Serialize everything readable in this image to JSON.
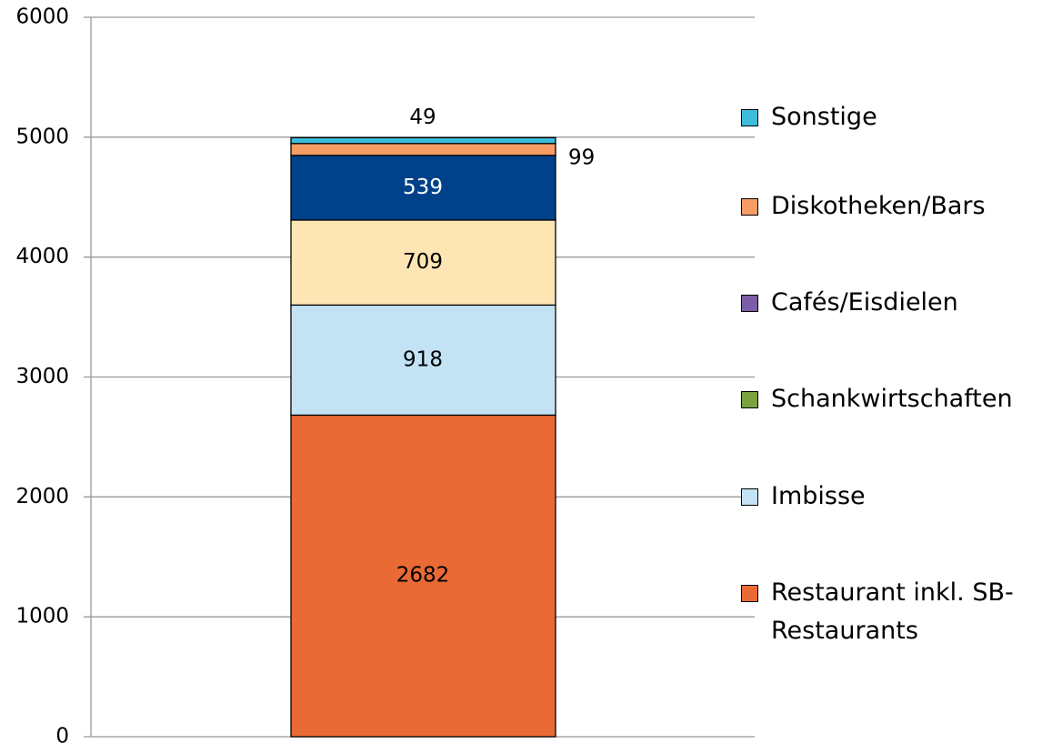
{
  "chart_data": {
    "type": "stacked_bar",
    "categories": [
      null
    ],
    "series": [
      {
        "name": "Restaurant inkl. SB-Restaurants",
        "color": "#e96a35",
        "values": [
          2682
        ]
      },
      {
        "name": "Imbisse",
        "color": "#c3e3f5",
        "values": [
          918
        ]
      },
      {
        "name": "Schankwirtschaften",
        "color": "#fde6b4",
        "legend_color": "#7aa33f",
        "values": [
          709
        ]
      },
      {
        "name": "Cafés/Eisdielen",
        "color": "#004289",
        "legend_color": "#7b5ea7",
        "values": [
          539
        ]
      },
      {
        "name": "Diskotheken/Bars",
        "color": "#f79c65",
        "values": [
          99
        ]
      },
      {
        "name": "Sonstige",
        "color": "#3cbddc",
        "values": [
          49
        ]
      }
    ],
    "ylim": [
      0,
      6000
    ],
    "yticks": [
      0,
      1000,
      2000,
      3000,
      4000,
      5000,
      6000
    ],
    "grid": true,
    "legend": "right"
  }
}
